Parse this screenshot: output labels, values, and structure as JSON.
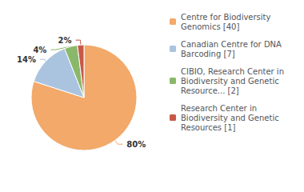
{
  "chart_data": {
    "type": "pie",
    "categories": [
      "Centre for Biodiversity\nGenomics [40]",
      "Canadian Centre for DNA\nBarcoding [7]",
      "CIBIO, Research Center in\nBiodiversity and Genetic\nResource... [2]",
      "Research Center in\nBiodiversity and Genetic\nResources [1]"
    ],
    "values": [
      80,
      14,
      4,
      2
    ],
    "value_labels": [
      "80%",
      "14%",
      "4%",
      "2%"
    ],
    "colors": [
      "#f2a96a",
      "#aac4df",
      "#8ab86a",
      "#c85848"
    ],
    "data_labels": true,
    "legend": "upper right"
  }
}
